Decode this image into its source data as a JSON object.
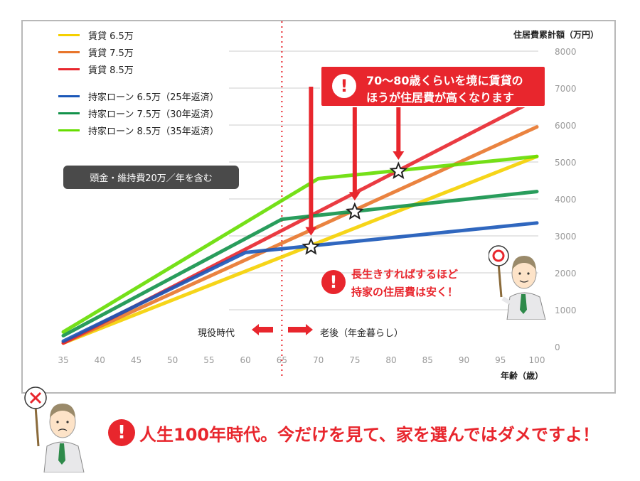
{
  "legend": [
    {
      "label": "賃貸 6.5万",
      "color": "#f5d000"
    },
    {
      "label": "賃貸 7.5万",
      "color": "#e8752b"
    },
    {
      "label": "賃貸 8.5万",
      "color": "#e8262d"
    },
    {
      "label": "持家ローン 6.5万（25年返済）",
      "color": "#1a57b8"
    },
    {
      "label": "持家ローン 7.5万（30年返済）",
      "color": "#12924a"
    },
    {
      "label": "持家ローン 8.5万（35年返済）",
      "color": "#66dd00"
    }
  ],
  "note": "頭金・維持費20万／年を含む",
  "callout": {
    "line1": "70〜80歳くらいを境に賃貸の",
    "line2": "ほうが住居費が高くなります"
  },
  "message_right": {
    "line1": "長生きすればするほど",
    "line2": "持家の住居費は安く！"
  },
  "phase_left": "現役時代",
  "phase_right": "老後（年金暮らし）",
  "bottom_message": "人生100年時代。今だけを見て、家を選んではダメですよ！",
  "bang_mark": "!",
  "chart_data": {
    "type": "line",
    "ylabel": "住居費累計額（万円）",
    "xlabel": "年齢（歳）",
    "xlim": [
      35,
      100
    ],
    "ylim": [
      0,
      8000
    ],
    "x_ticks": [
      35,
      40,
      45,
      50,
      55,
      60,
      65,
      70,
      75,
      80,
      85,
      90,
      95,
      100
    ],
    "y_ticks": [
      0,
      1000,
      2000,
      3000,
      4000,
      5000,
      6000,
      7000,
      8000
    ],
    "grid": true,
    "legend_position": "top-left",
    "vertical_marker_x": 65,
    "series": [
      {
        "name": "賃貸 6.5万",
        "color": "#f5d000",
        "points": [
          [
            35,
            100
          ],
          [
            100,
            5150
          ]
        ]
      },
      {
        "name": "賃貸 7.5万",
        "color": "#e8752b",
        "points": [
          [
            35,
            100
          ],
          [
            100,
            5950
          ]
        ]
      },
      {
        "name": "賃貸 8.5万",
        "color": "#e8262d",
        "points": [
          [
            35,
            100
          ],
          [
            100,
            6700
          ]
        ]
      },
      {
        "name": "持家ローン 6.5万（25年返済）",
        "color": "#1a57b8",
        "points": [
          [
            35,
            150
          ],
          [
            60,
            2550
          ],
          [
            100,
            3350
          ]
        ]
      },
      {
        "name": "持家ローン 7.5万（30年返済）",
        "color": "#12924a",
        "points": [
          [
            35,
            300
          ],
          [
            65,
            3450
          ],
          [
            100,
            4200
          ]
        ]
      },
      {
        "name": "持家ローン 8.5万（35年返済）",
        "color": "#66dd00",
        "points": [
          [
            35,
            400
          ],
          [
            70,
            4550
          ],
          [
            100,
            5150
          ]
        ]
      }
    ],
    "crossing_markers": [
      [
        69,
        2700
      ],
      [
        75,
        3650
      ],
      [
        81,
        4750
      ]
    ]
  }
}
